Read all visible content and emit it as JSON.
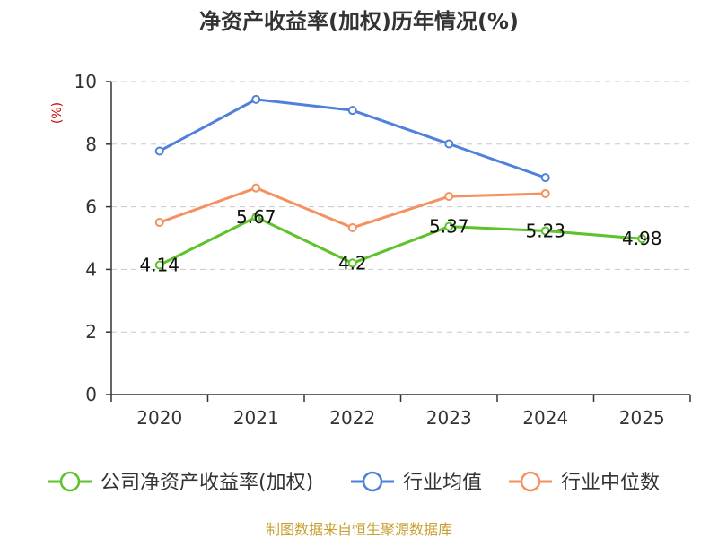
{
  "chart_data": {
    "type": "line",
    "title": "净资产收益率(加权)历年情况(%)",
    "ylabel": "(%)",
    "xlabel": "",
    "categories": [
      "2020",
      "2021",
      "2022",
      "2023",
      "2024",
      "2025"
    ],
    "ylim": [
      0,
      10
    ],
    "yticks": [
      0,
      2,
      4,
      6,
      8,
      10
    ],
    "grid": true,
    "legend_position": "bottom",
    "series": [
      {
        "name": "公司净资产收益率(加权)",
        "color": "#5ec22b",
        "values": [
          4.14,
          5.67,
          4.2,
          5.37,
          5.23,
          4.98
        ],
        "show_labels": true
      },
      {
        "name": "行业均值",
        "color": "#4e80dc",
        "values": [
          7.78,
          9.43,
          9.08,
          8.01,
          6.93,
          null
        ],
        "show_labels": false
      },
      {
        "name": "行业中位数",
        "color": "#f59160",
        "values": [
          5.5,
          6.6,
          5.33,
          6.33,
          6.42,
          null
        ],
        "show_labels": false
      }
    ],
    "data_labels": [
      "4.14",
      "5.67",
      "4.2",
      "5.37",
      "5.23",
      "4.98"
    ]
  },
  "source": "制图数据来自恒生聚源数据库"
}
